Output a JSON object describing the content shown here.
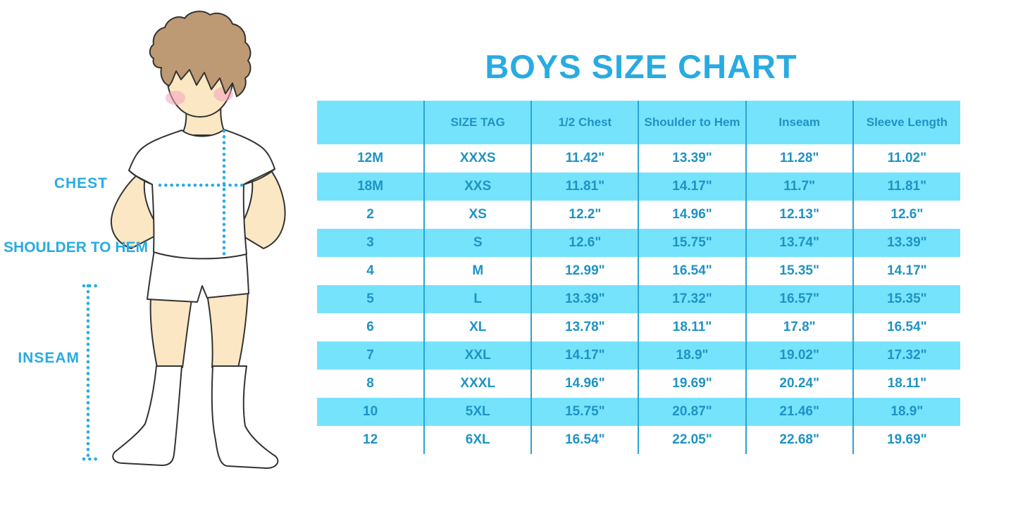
{
  "title": "BOYS SIZE CHART",
  "figure": {
    "chest_label": "CHEST",
    "shoulder_label": "SHOULDER TO HEM",
    "inseam_label": "INSEAM"
  },
  "colors": {
    "accent_blue": "#29ABE2",
    "table_text_blue": "#1E93C4",
    "stripe_cyan": "#76E3FC",
    "grid_line_blue": "#2BA3D4",
    "hair_brown": "#BD9A73",
    "skin": "#FBE7C3",
    "cheek_pink": "#F2A2BC",
    "outline": "#333333"
  },
  "chart_data": {
    "type": "table",
    "title": "BOYS SIZE CHART",
    "columns": [
      "",
      "SIZE TAG",
      "1/2 Chest",
      "Shoulder to Hem",
      "Inseam",
      "Sleeve Length"
    ],
    "rows": [
      [
        "12M",
        "XXXS",
        "11.42\"",
        "13.39\"",
        "11.28\"",
        "11.02\""
      ],
      [
        "18M",
        "XXS",
        "11.81\"",
        "14.17\"",
        "11.7\"",
        "11.81\""
      ],
      [
        "2",
        "XS",
        "12.2\"",
        "14.96\"",
        "12.13\"",
        "12.6\""
      ],
      [
        "3",
        "S",
        "12.6\"",
        "15.75\"",
        "13.74\"",
        "13.39\""
      ],
      [
        "4",
        "M",
        "12.99\"",
        "16.54\"",
        "15.35\"",
        "14.17\""
      ],
      [
        "5",
        "L",
        "13.39\"",
        "17.32\"",
        "16.57\"",
        "15.35\""
      ],
      [
        "6",
        "XL",
        "13.78\"",
        "18.11\"",
        "17.8\"",
        "16.54\""
      ],
      [
        "7",
        "XXL",
        "14.17\"",
        "18.9\"",
        "19.02\"",
        "17.32\""
      ],
      [
        "8",
        "XXXL",
        "14.96\"",
        "19.69\"",
        "20.24\"",
        "18.11\""
      ],
      [
        "10",
        "5XL",
        "15.75\"",
        "20.87\"",
        "21.46\"",
        "18.9\""
      ],
      [
        "12",
        "6XL",
        "16.54\"",
        "22.05\"",
        "22.68\"",
        "19.69\""
      ]
    ],
    "measure_labels": [
      "CHEST",
      "SHOULDER TO HEM",
      "INSEAM"
    ],
    "layout_hints": {
      "striped_rows": true,
      "stripe_start": "header",
      "grid": "vertical-only"
    }
  }
}
